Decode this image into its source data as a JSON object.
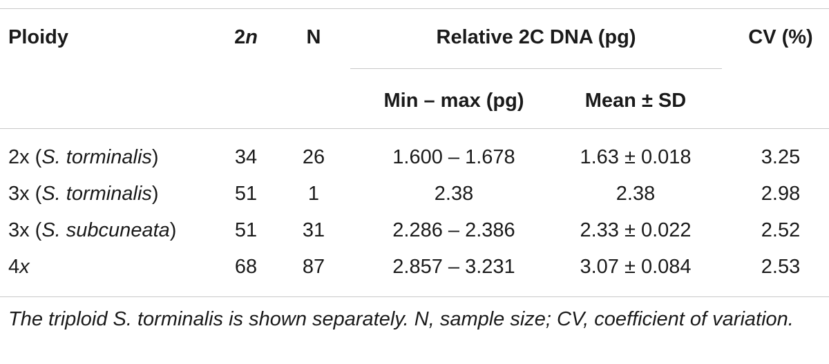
{
  "header": {
    "ploidy": "Ploidy",
    "two_n_num": "2",
    "two_n_var": "n",
    "n": "N",
    "relative_dna": "Relative 2C DNA (pg)",
    "cv": "CV (%)",
    "min_max": "Min – max (pg)",
    "mean_sd": "Mean ± SD"
  },
  "rows": [
    {
      "ploidy_prefix": "2x (",
      "species": "S. torminalis",
      "ploidy_suffix": ")",
      "two_n": "34",
      "n": "26",
      "min_max": "1.600 – 1.678",
      "mean_sd": "1.63 ± 0.018",
      "cv": "3.25"
    },
    {
      "ploidy_prefix": "3x (",
      "species": "S. torminalis",
      "ploidy_suffix": ")",
      "two_n": "51",
      "n": "1",
      "min_max": "2.38",
      "mean_sd": "2.38",
      "cv": "2.98"
    },
    {
      "ploidy_prefix": "3x (",
      "species": "S. subcuneata",
      "ploidy_suffix": ")",
      "two_n": "51",
      "n": "31",
      "min_max": "2.286 – 2.386",
      "mean_sd": "2.33 ± 0.022",
      "cv": "2.52"
    },
    {
      "ploidy_num": "4",
      "ploidy_var": "x",
      "two_n": "68",
      "n": "87",
      "min_max": "2.857 – 3.231",
      "mean_sd": "3.07 ± 0.084",
      "cv": "2.53"
    }
  ],
  "footnote": "The triploid S. torminalis is shown separately. N, sample size; CV, coefficient of variation."
}
